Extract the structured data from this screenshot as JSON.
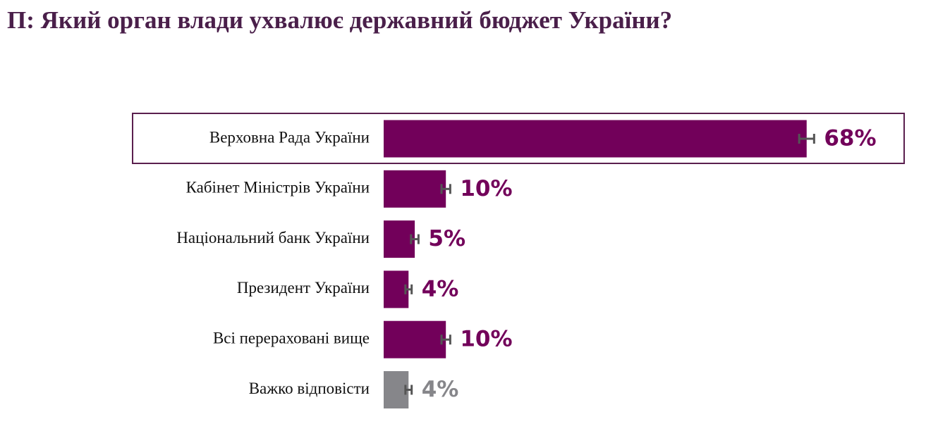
{
  "chart_data": {
    "type": "bar",
    "orientation": "horizontal",
    "title": "П: Який орган влади ухвалює державний бюджет України?",
    "categories": [
      "Верховна Рада України",
      "Кабінет Міністрів України",
      "Національний банк України",
      "Президент України",
      "Всі перераховані вище",
      "Важко відповісти"
    ],
    "values": [
      68,
      10,
      5,
      4,
      10,
      4
    ],
    "value_labels": [
      "68%",
      "10%",
      "5%",
      "4%",
      "10%",
      "4%"
    ],
    "errors": [
      1.2,
      0.7,
      0.6,
      0.5,
      0.7,
      0.5
    ],
    "colors": [
      "#72005a",
      "#72005a",
      "#72005a",
      "#72005a",
      "#72005a",
      "#86868a"
    ]
  }
}
